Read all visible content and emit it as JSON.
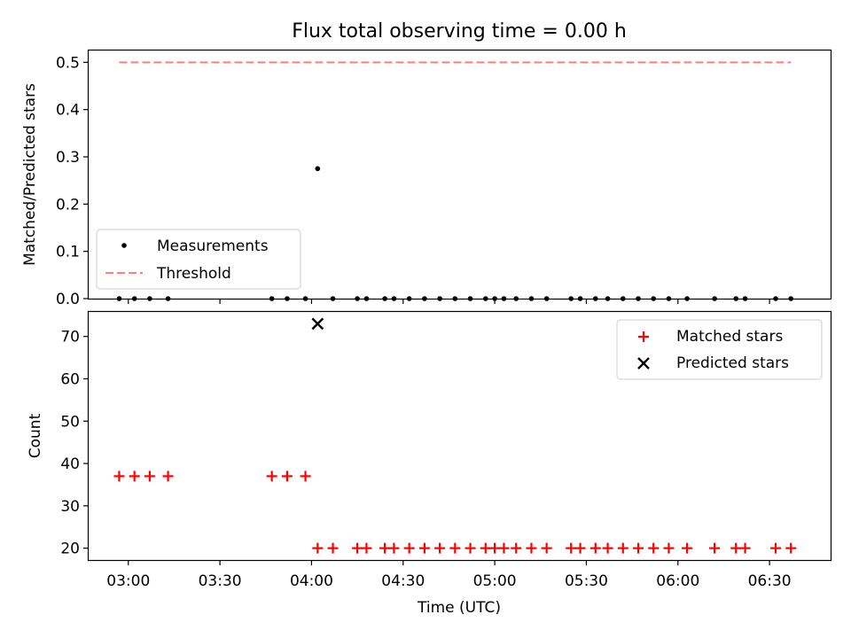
{
  "chart_data": [
    {
      "type": "scatter",
      "title": "Flux total observing time = 0.00 h",
      "xlabel": "",
      "ylabel": "Matched/Predicted stars",
      "xlim": [
        "02:47",
        "06:50"
      ],
      "ylim": [
        0,
        0.525
      ],
      "yticks": [
        0.0,
        0.1,
        0.2,
        0.3,
        0.4,
        0.5
      ],
      "ytick_labels": [
        "0.0",
        "0.1",
        "0.2",
        "0.3",
        "0.4",
        "0.5"
      ],
      "grid": false,
      "legend_position": "lower-left",
      "series": [
        {
          "name": "Measurements",
          "marker": "dot",
          "color": "#000000",
          "points": [
            [
              "02:57",
              0
            ],
            [
              "03:02",
              0
            ],
            [
              "03:07",
              0
            ],
            [
              "03:13",
              0
            ],
            [
              "03:47",
              0
            ],
            [
              "03:52",
              0
            ],
            [
              "03:58",
              0
            ],
            [
              "04:02",
              0.275
            ],
            [
              "04:07",
              0
            ],
            [
              "04:15",
              0
            ],
            [
              "04:18",
              0
            ],
            [
              "04:24",
              0
            ],
            [
              "04:27",
              0
            ],
            [
              "04:32",
              0
            ],
            [
              "04:37",
              0
            ],
            [
              "04:42",
              0
            ],
            [
              "04:47",
              0
            ],
            [
              "04:52",
              0
            ],
            [
              "04:57",
              0
            ],
            [
              "05:00",
              0
            ],
            [
              "05:03",
              0
            ],
            [
              "05:07",
              0
            ],
            [
              "05:12",
              0
            ],
            [
              "05:17",
              0
            ],
            [
              "05:25",
              0
            ],
            [
              "05:28",
              0
            ],
            [
              "05:33",
              0
            ],
            [
              "05:37",
              0
            ],
            [
              "05:42",
              0
            ],
            [
              "05:47",
              0
            ],
            [
              "05:52",
              0
            ],
            [
              "05:57",
              0
            ],
            [
              "06:03",
              0
            ],
            [
              "06:12",
              0
            ],
            [
              "06:19",
              0
            ],
            [
              "06:22",
              0
            ],
            [
              "06:32",
              0
            ],
            [
              "06:37",
              0
            ]
          ]
        },
        {
          "name": "Threshold",
          "line_style": "dashed",
          "color": "#ff7f7f",
          "points": [
            [
              "02:57",
              0.5
            ],
            [
              "06:37",
              0.5
            ]
          ]
        }
      ]
    },
    {
      "type": "scatter",
      "title": "",
      "xlabel": "Time (UTC)",
      "ylabel": "Count",
      "xlim": [
        "02:47",
        "06:50"
      ],
      "ylim": [
        17.2,
        75.8
      ],
      "yticks": [
        20,
        30,
        40,
        50,
        60,
        70
      ],
      "ytick_labels": [
        "20",
        "30",
        "40",
        "50",
        "60",
        "70"
      ],
      "xticks": [
        "03:00",
        "03:30",
        "04:00",
        "04:30",
        "05:00",
        "05:30",
        "06:00",
        "06:30"
      ],
      "xtick_labels": [
        "03:00",
        "03:30",
        "04:00",
        "04:30",
        "05:00",
        "05:30",
        "06:00",
        "06:30"
      ],
      "grid": false,
      "legend_position": "upper-right",
      "series": [
        {
          "name": "Matched stars",
          "marker": "plus",
          "color": "#ff0000",
          "points": [
            [
              "02:57",
              37
            ],
            [
              "03:02",
              37
            ],
            [
              "03:07",
              37
            ],
            [
              "03:13",
              37
            ],
            [
              "03:47",
              37
            ],
            [
              "03:52",
              37
            ],
            [
              "03:58",
              37
            ],
            [
              "04:02",
              20
            ],
            [
              "04:07",
              20
            ],
            [
              "04:15",
              20
            ],
            [
              "04:18",
              20
            ],
            [
              "04:24",
              20
            ],
            [
              "04:27",
              20
            ],
            [
              "04:32",
              20
            ],
            [
              "04:37",
              20
            ],
            [
              "04:42",
              20
            ],
            [
              "04:47",
              20
            ],
            [
              "04:52",
              20
            ],
            [
              "04:57",
              20
            ],
            [
              "05:00",
              20
            ],
            [
              "05:03",
              20
            ],
            [
              "05:07",
              20
            ],
            [
              "05:12",
              20
            ],
            [
              "05:17",
              20
            ],
            [
              "05:25",
              20
            ],
            [
              "05:28",
              20
            ],
            [
              "05:33",
              20
            ],
            [
              "05:37",
              20
            ],
            [
              "05:42",
              20
            ],
            [
              "05:47",
              20
            ],
            [
              "05:52",
              20
            ],
            [
              "05:57",
              20
            ],
            [
              "06:03",
              20
            ],
            [
              "06:12",
              20
            ],
            [
              "06:19",
              20
            ],
            [
              "06:22",
              20
            ],
            [
              "06:32",
              20
            ],
            [
              "06:37",
              20
            ]
          ]
        },
        {
          "name": "Predicted stars",
          "marker": "x",
          "color": "#000000",
          "points": [
            [
              "04:02",
              73
            ]
          ]
        }
      ]
    }
  ]
}
